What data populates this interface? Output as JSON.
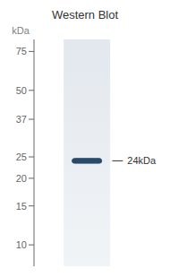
{
  "chart_data": {
    "type": "blot",
    "title": "Western Blot",
    "y_label": "kDa",
    "log": "y",
    "ylim": [
      8,
      85
    ],
    "yticks": [
      75,
      50,
      37,
      25,
      20,
      15,
      10
    ],
    "tick_labels": "y",
    "values": [
      24
    ],
    "heights": [
      1.2
    ],
    "color": "#2a4a6a",
    "annotations": [
      {
        "text": "24kDa",
        "y": 24
      }
    ]
  }
}
